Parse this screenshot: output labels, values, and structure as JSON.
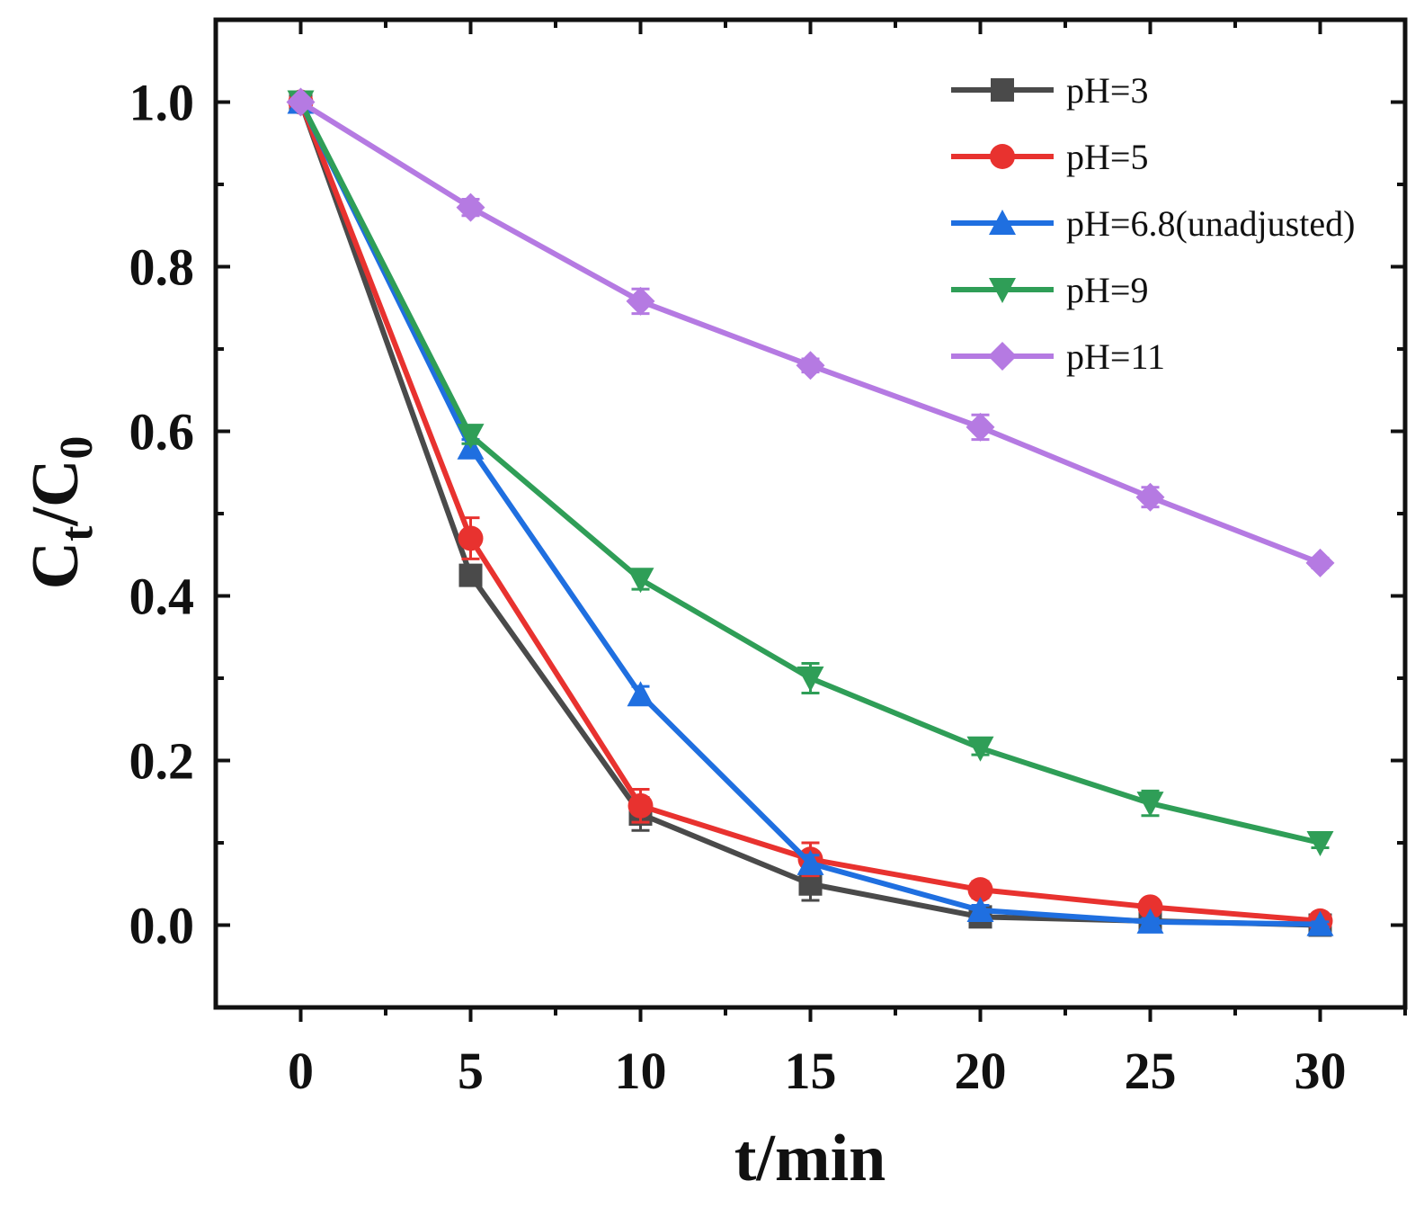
{
  "chart_data": {
    "type": "line",
    "title": "",
    "xlabel": "t/min",
    "ylabel_main": "C",
    "ylabel_sub1": "t",
    "ylabel_mid": "/C",
    "ylabel_sub2": "0",
    "x": [
      0,
      5,
      10,
      15,
      20,
      25,
      30
    ],
    "xlim": [
      -2.5,
      32.5
    ],
    "ylim": [
      -0.1,
      1.1
    ],
    "xticks": [
      "0",
      "5",
      "10",
      "15",
      "20",
      "25",
      "30"
    ],
    "yticks": [
      "0.0",
      "0.2",
      "0.4",
      "0.6",
      "0.8",
      "1.0"
    ],
    "ytick_values": [
      0.0,
      0.2,
      0.4,
      0.6,
      0.8,
      1.0
    ],
    "legend_position": "top-right",
    "series": [
      {
        "name": "pH=3",
        "color": "#4a4a4a",
        "marker": "square",
        "values": [
          1.0,
          0.425,
          0.135,
          0.05,
          0.01,
          0.005,
          0.0
        ],
        "errors": [
          0.005,
          0.01,
          0.02,
          0.02,
          0.008,
          0.004,
          0.004
        ]
      },
      {
        "name": "pH=5",
        "color": "#e8322f",
        "marker": "circle",
        "values": [
          1.0,
          0.47,
          0.145,
          0.08,
          0.043,
          0.022,
          0.005
        ],
        "errors": [
          0.005,
          0.025,
          0.02,
          0.02,
          0.01,
          0.008,
          0.005
        ]
      },
      {
        "name": "pH=6.8(unadjusted)",
        "color": "#1f6fe0",
        "marker": "triangle-up",
        "values": [
          1.0,
          0.58,
          0.28,
          0.075,
          0.018,
          0.004,
          0.001
        ],
        "errors": [
          0.005,
          0.01,
          0.01,
          0.01,
          0.006,
          0.004,
          0.003
        ]
      },
      {
        "name": "pH=9",
        "color": "#2f9e57",
        "marker": "triangle-down",
        "values": [
          1.0,
          0.595,
          0.42,
          0.3,
          0.215,
          0.148,
          0.1
        ],
        "errors": [
          0.005,
          0.01,
          0.012,
          0.018,
          0.008,
          0.015,
          0.006
        ]
      },
      {
        "name": "pH=11",
        "color": "#b57ae2",
        "marker": "diamond",
        "values": [
          1.0,
          0.872,
          0.758,
          0.68,
          0.605,
          0.52,
          0.44
        ],
        "errors": [
          0.005,
          0.01,
          0.015,
          0.008,
          0.015,
          0.012,
          0.006
        ]
      }
    ]
  }
}
